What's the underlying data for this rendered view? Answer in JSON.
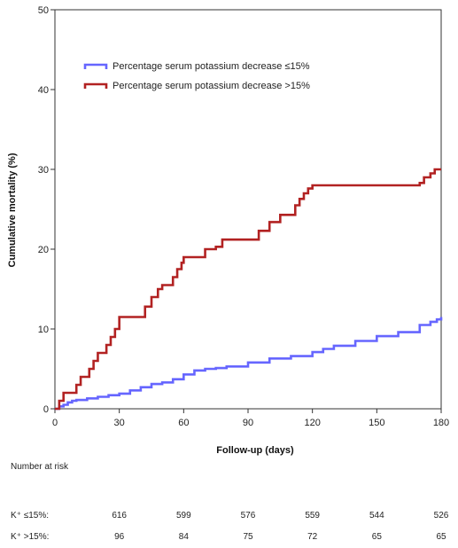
{
  "chart_data": {
    "type": "line",
    "title": "",
    "xlabel": "Follow-up (days)",
    "ylabel": "Cumulative mortality (%)",
    "xlim": [
      0,
      180
    ],
    "ylim": [
      0,
      50
    ],
    "xticks": [
      0,
      30,
      60,
      90,
      120,
      150,
      180
    ],
    "yticks": [
      0,
      10,
      20,
      30,
      40,
      50
    ],
    "grid": false,
    "legend_position": "top-left",
    "series": [
      {
        "name": "Percentage serum potassium decrease ≤15%",
        "color": "#6666ff",
        "step": true,
        "x": [
          0,
          2,
          4,
          6,
          8,
          10,
          15,
          20,
          25,
          30,
          35,
          40,
          45,
          50,
          55,
          60,
          65,
          70,
          75,
          80,
          90,
          100,
          110,
          120,
          125,
          130,
          140,
          150,
          160,
          170,
          175,
          178,
          180
        ],
        "y": [
          0,
          0.3,
          0.5,
          0.8,
          1.0,
          1.1,
          1.3,
          1.5,
          1.7,
          1.9,
          2.3,
          2.7,
          3.1,
          3.3,
          3.7,
          4.3,
          4.8,
          5.0,
          5.1,
          5.3,
          5.8,
          6.3,
          6.6,
          7.1,
          7.5,
          7.9,
          8.5,
          9.1,
          9.6,
          10.5,
          10.9,
          11.2,
          11.5
        ]
      },
      {
        "name": "Percentage serum potassium decrease >15%",
        "color": "#b22222",
        "step": true,
        "x": [
          0,
          2,
          4,
          10,
          12,
          16,
          18,
          20,
          24,
          26,
          28,
          30,
          42,
          45,
          48,
          50,
          55,
          57,
          59,
          60,
          70,
          75,
          78,
          95,
          100,
          105,
          112,
          114,
          116,
          118,
          120,
          170,
          172,
          175,
          177,
          180
        ],
        "y": [
          0,
          1,
          2,
          3,
          4,
          5,
          6,
          7,
          8,
          9,
          10,
          11.5,
          12.8,
          14.0,
          15.0,
          15.5,
          16.5,
          17.5,
          18.3,
          19.0,
          20.0,
          20.3,
          21.2,
          22.3,
          23.4,
          24.3,
          25.5,
          26.3,
          27.0,
          27.6,
          28.0,
          28.3,
          29.0,
          29.5,
          30.0,
          30.0
        ]
      }
    ]
  },
  "risk_table": {
    "title": "Number at risk",
    "rows": [
      {
        "label": "K⁺ ≤15%:",
        "values": [
          "616",
          "599",
          "576",
          "559",
          "544",
          "526"
        ]
      },
      {
        "label": "K⁺ >15%:",
        "values": [
          "96",
          "84",
          "75",
          "72",
          "65",
          "65"
        ]
      }
    ]
  }
}
